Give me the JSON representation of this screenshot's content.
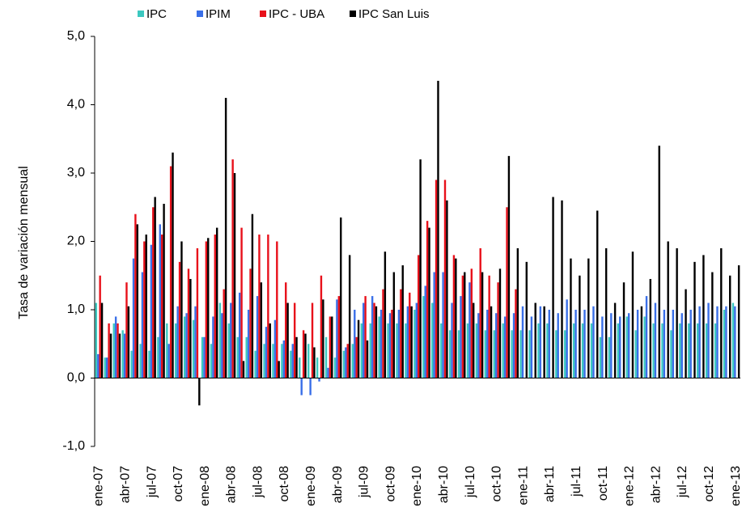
{
  "chart_data": {
    "type": "bar",
    "y_axis_label": "Tasa de variación mensual",
    "categories": [
      "ene-07",
      null,
      null,
      "abr-07",
      null,
      null,
      "jul-07",
      null,
      null,
      "oct-07",
      null,
      null,
      "ene-08",
      null,
      null,
      "abr-08",
      null,
      null,
      "jul-08",
      null,
      null,
      "oct-08",
      null,
      null,
      "ene-09",
      null,
      null,
      "abr-09",
      null,
      null,
      "jul-09",
      null,
      null,
      "oct-09",
      null,
      null,
      "ene-10",
      null,
      null,
      "abr-10",
      null,
      null,
      "jul-10",
      null,
      null,
      "oct-10",
      null,
      null,
      "ene-11",
      null,
      null,
      "abr-11",
      null,
      null,
      "jul-11",
      null,
      null,
      "oct-11",
      null,
      null,
      "ene-12",
      null,
      null,
      "abr-12",
      null,
      null,
      "jul-12",
      null,
      null,
      "oct-12",
      null,
      null,
      "ene-13"
    ],
    "series": [
      {
        "name": "IPC",
        "color": "#3cc8c0",
        "values": [
          1.1,
          0.3,
          0.8,
          0.7,
          0.4,
          0.5,
          0.4,
          0.6,
          0.8,
          0.8,
          0.9,
          0.85,
          0.6,
          0.5,
          1.1,
          0.8,
          0.6,
          0.6,
          0.4,
          0.5,
          0.5,
          0.5,
          0.4,
          0.3,
          0.5,
          0.3,
          0.6,
          0.3,
          0.4,
          0.5,
          0.8,
          0.8,
          0.9,
          0.8,
          0.8,
          0.8,
          1.0,
          1.2,
          1.1,
          0.8,
          0.7,
          0.7,
          0.8,
          0.8,
          0.7,
          0.7,
          0.8,
          0.7,
          0.7,
          0.7,
          0.8,
          0.8,
          0.7,
          0.7,
          0.8,
          0.8,
          0.8,
          0.6,
          0.6,
          0.8,
          0.9,
          0.7,
          0.9,
          0.8,
          0.8,
          0.7,
          0.8,
          0.8,
          0.8,
          0.8,
          0.8,
          1.0,
          1.1
        ]
      },
      {
        "name": "IPIM",
        "color": "#3a6fe8",
        "values": [
          0.35,
          0.3,
          0.9,
          0.65,
          1.75,
          1.55,
          1.95,
          2.25,
          0.5,
          1.05,
          0.95,
          1.05,
          0.6,
          0.9,
          0.95,
          1.1,
          1.25,
          1.0,
          1.2,
          0.75,
          0.85,
          0.55,
          0.5,
          -0.25,
          -0.25,
          -0.05,
          0.15,
          1.15,
          0.45,
          1.0,
          1.1,
          1.2,
          1.0,
          0.95,
          1.0,
          1.05,
          1.1,
          1.35,
          1.55,
          1.55,
          1.1,
          1.2,
          1.4,
          0.95,
          1.0,
          0.95,
          0.9,
          0.95,
          1.05,
          0.9,
          1.05,
          1.0,
          0.95,
          1.15,
          1.0,
          1.0,
          1.05,
          0.9,
          0.95,
          0.9,
          0.95,
          1.0,
          1.2,
          1.1,
          1.0,
          1.0,
          0.95,
          1.0,
          1.05,
          1.1,
          1.05,
          1.05,
          1.05
        ]
      },
      {
        "name": "IPC - UBA",
        "color": "#e8101a",
        "values": [
          1.5,
          0.8,
          0.8,
          1.4,
          2.4,
          2.0,
          2.5,
          2.1,
          3.1,
          1.7,
          1.6,
          1.9,
          2.0,
          2.1,
          1.3,
          3.2,
          2.2,
          1.6,
          2.1,
          2.1,
          2.0,
          1.4,
          1.1,
          0.7,
          1.1,
          1.5,
          0.9,
          1.2,
          0.5,
          0.6,
          1.2,
          1.1,
          1.3,
          1.0,
          1.3,
          1.25,
          1.8,
          2.3,
          2.9,
          2.9,
          1.8,
          1.5,
          1.6,
          1.9,
          1.5,
          1.4,
          2.5,
          1.3,
          null,
          null,
          null,
          null,
          null,
          null,
          null,
          null,
          null,
          null,
          null,
          null,
          null,
          null,
          null,
          null,
          null,
          null,
          null,
          null,
          null,
          null,
          null,
          null,
          null
        ]
      },
      {
        "name": "IPC San Luis",
        "color": "#000000",
        "values": [
          1.1,
          0.65,
          0.65,
          1.05,
          2.25,
          2.1,
          2.65,
          2.55,
          3.3,
          2.0,
          1.45,
          -0.4,
          2.05,
          2.2,
          4.1,
          3.0,
          0.25,
          2.4,
          1.4,
          0.8,
          0.25,
          1.1,
          0.6,
          0.65,
          0.45,
          1.15,
          0.9,
          2.35,
          1.8,
          0.85,
          0.55,
          1.05,
          1.85,
          1.55,
          1.65,
          1.05,
          3.2,
          2.2,
          4.35,
          2.6,
          1.75,
          1.55,
          1.1,
          1.55,
          1.05,
          1.6,
          3.25,
          1.9,
          1.7,
          1.1,
          1.05,
          2.65,
          2.6,
          1.75,
          1.5,
          1.75,
          2.45,
          1.9,
          1.1,
          1.4,
          1.85,
          1.05,
          1.45,
          3.4,
          2.0,
          1.9,
          1.3,
          1.7,
          1.8,
          1.55,
          1.9,
          1.5,
          1.65
        ]
      }
    ],
    "ylim": [
      -1,
      5
    ],
    "yticks": [
      {
        "value": -1,
        "label": "-1,0"
      },
      {
        "value": 0,
        "label": "0,0"
      },
      {
        "value": 1,
        "label": "1,0"
      },
      {
        "value": 2,
        "label": "2,0"
      },
      {
        "value": 3,
        "label": "3,0"
      },
      {
        "value": 4,
        "label": "4,0"
      },
      {
        "value": 5,
        "label": "5,0"
      }
    ],
    "grid": false,
    "legend": "top"
  }
}
